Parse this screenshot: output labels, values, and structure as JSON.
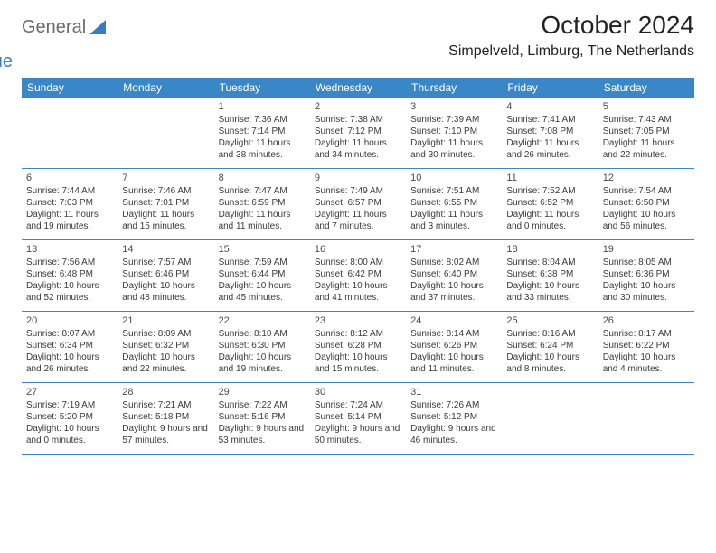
{
  "logo": {
    "text1": "General",
    "text2": "Blue"
  },
  "header": {
    "month_title": "October 2024",
    "location": "Simpelveld, Limburg, The Netherlands"
  },
  "colors": {
    "header_bg": "#3a87c7",
    "header_text": "#ffffff",
    "row_divider": "#3a87c7",
    "body_text": "#3a3a3a",
    "logo_gray": "#6b6b6b",
    "logo_blue": "#3a7cc0",
    "page_bg": "#ffffff"
  },
  "typography": {
    "title_fontsize": 28,
    "location_fontsize": 16,
    "header_cell_fontsize": 12,
    "daynum_fontsize": 11,
    "body_fontsize": 10
  },
  "day_headers": [
    "Sunday",
    "Monday",
    "Tuesday",
    "Wednesday",
    "Thursday",
    "Friday",
    "Saturday"
  ],
  "weeks": [
    [
      null,
      null,
      {
        "n": "1",
        "sr": "Sunrise: 7:36 AM",
        "ss": "Sunset: 7:14 PM",
        "dl": "Daylight: 11 hours and 38 minutes."
      },
      {
        "n": "2",
        "sr": "Sunrise: 7:38 AM",
        "ss": "Sunset: 7:12 PM",
        "dl": "Daylight: 11 hours and 34 minutes."
      },
      {
        "n": "3",
        "sr": "Sunrise: 7:39 AM",
        "ss": "Sunset: 7:10 PM",
        "dl": "Daylight: 11 hours and 30 minutes."
      },
      {
        "n": "4",
        "sr": "Sunrise: 7:41 AM",
        "ss": "Sunset: 7:08 PM",
        "dl": "Daylight: 11 hours and 26 minutes."
      },
      {
        "n": "5",
        "sr": "Sunrise: 7:43 AM",
        "ss": "Sunset: 7:05 PM",
        "dl": "Daylight: 11 hours and 22 minutes."
      }
    ],
    [
      {
        "n": "6",
        "sr": "Sunrise: 7:44 AM",
        "ss": "Sunset: 7:03 PM",
        "dl": "Daylight: 11 hours and 19 minutes."
      },
      {
        "n": "7",
        "sr": "Sunrise: 7:46 AM",
        "ss": "Sunset: 7:01 PM",
        "dl": "Daylight: 11 hours and 15 minutes."
      },
      {
        "n": "8",
        "sr": "Sunrise: 7:47 AM",
        "ss": "Sunset: 6:59 PM",
        "dl": "Daylight: 11 hours and 11 minutes."
      },
      {
        "n": "9",
        "sr": "Sunrise: 7:49 AM",
        "ss": "Sunset: 6:57 PM",
        "dl": "Daylight: 11 hours and 7 minutes."
      },
      {
        "n": "10",
        "sr": "Sunrise: 7:51 AM",
        "ss": "Sunset: 6:55 PM",
        "dl": "Daylight: 11 hours and 3 minutes."
      },
      {
        "n": "11",
        "sr": "Sunrise: 7:52 AM",
        "ss": "Sunset: 6:52 PM",
        "dl": "Daylight: 11 hours and 0 minutes."
      },
      {
        "n": "12",
        "sr": "Sunrise: 7:54 AM",
        "ss": "Sunset: 6:50 PM",
        "dl": "Daylight: 10 hours and 56 minutes."
      }
    ],
    [
      {
        "n": "13",
        "sr": "Sunrise: 7:56 AM",
        "ss": "Sunset: 6:48 PM",
        "dl": "Daylight: 10 hours and 52 minutes."
      },
      {
        "n": "14",
        "sr": "Sunrise: 7:57 AM",
        "ss": "Sunset: 6:46 PM",
        "dl": "Daylight: 10 hours and 48 minutes."
      },
      {
        "n": "15",
        "sr": "Sunrise: 7:59 AM",
        "ss": "Sunset: 6:44 PM",
        "dl": "Daylight: 10 hours and 45 minutes."
      },
      {
        "n": "16",
        "sr": "Sunrise: 8:00 AM",
        "ss": "Sunset: 6:42 PM",
        "dl": "Daylight: 10 hours and 41 minutes."
      },
      {
        "n": "17",
        "sr": "Sunrise: 8:02 AM",
        "ss": "Sunset: 6:40 PM",
        "dl": "Daylight: 10 hours and 37 minutes."
      },
      {
        "n": "18",
        "sr": "Sunrise: 8:04 AM",
        "ss": "Sunset: 6:38 PM",
        "dl": "Daylight: 10 hours and 33 minutes."
      },
      {
        "n": "19",
        "sr": "Sunrise: 8:05 AM",
        "ss": "Sunset: 6:36 PM",
        "dl": "Daylight: 10 hours and 30 minutes."
      }
    ],
    [
      {
        "n": "20",
        "sr": "Sunrise: 8:07 AM",
        "ss": "Sunset: 6:34 PM",
        "dl": "Daylight: 10 hours and 26 minutes."
      },
      {
        "n": "21",
        "sr": "Sunrise: 8:09 AM",
        "ss": "Sunset: 6:32 PM",
        "dl": "Daylight: 10 hours and 22 minutes."
      },
      {
        "n": "22",
        "sr": "Sunrise: 8:10 AM",
        "ss": "Sunset: 6:30 PM",
        "dl": "Daylight: 10 hours and 19 minutes."
      },
      {
        "n": "23",
        "sr": "Sunrise: 8:12 AM",
        "ss": "Sunset: 6:28 PM",
        "dl": "Daylight: 10 hours and 15 minutes."
      },
      {
        "n": "24",
        "sr": "Sunrise: 8:14 AM",
        "ss": "Sunset: 6:26 PM",
        "dl": "Daylight: 10 hours and 11 minutes."
      },
      {
        "n": "25",
        "sr": "Sunrise: 8:16 AM",
        "ss": "Sunset: 6:24 PM",
        "dl": "Daylight: 10 hours and 8 minutes."
      },
      {
        "n": "26",
        "sr": "Sunrise: 8:17 AM",
        "ss": "Sunset: 6:22 PM",
        "dl": "Daylight: 10 hours and 4 minutes."
      }
    ],
    [
      {
        "n": "27",
        "sr": "Sunrise: 7:19 AM",
        "ss": "Sunset: 5:20 PM",
        "dl": "Daylight: 10 hours and 0 minutes."
      },
      {
        "n": "28",
        "sr": "Sunrise: 7:21 AM",
        "ss": "Sunset: 5:18 PM",
        "dl": "Daylight: 9 hours and 57 minutes."
      },
      {
        "n": "29",
        "sr": "Sunrise: 7:22 AM",
        "ss": "Sunset: 5:16 PM",
        "dl": "Daylight: 9 hours and 53 minutes."
      },
      {
        "n": "30",
        "sr": "Sunrise: 7:24 AM",
        "ss": "Sunset: 5:14 PM",
        "dl": "Daylight: 9 hours and 50 minutes."
      },
      {
        "n": "31",
        "sr": "Sunrise: 7:26 AM",
        "ss": "Sunset: 5:12 PM",
        "dl": "Daylight: 9 hours and 46 minutes."
      },
      null,
      null
    ]
  ]
}
